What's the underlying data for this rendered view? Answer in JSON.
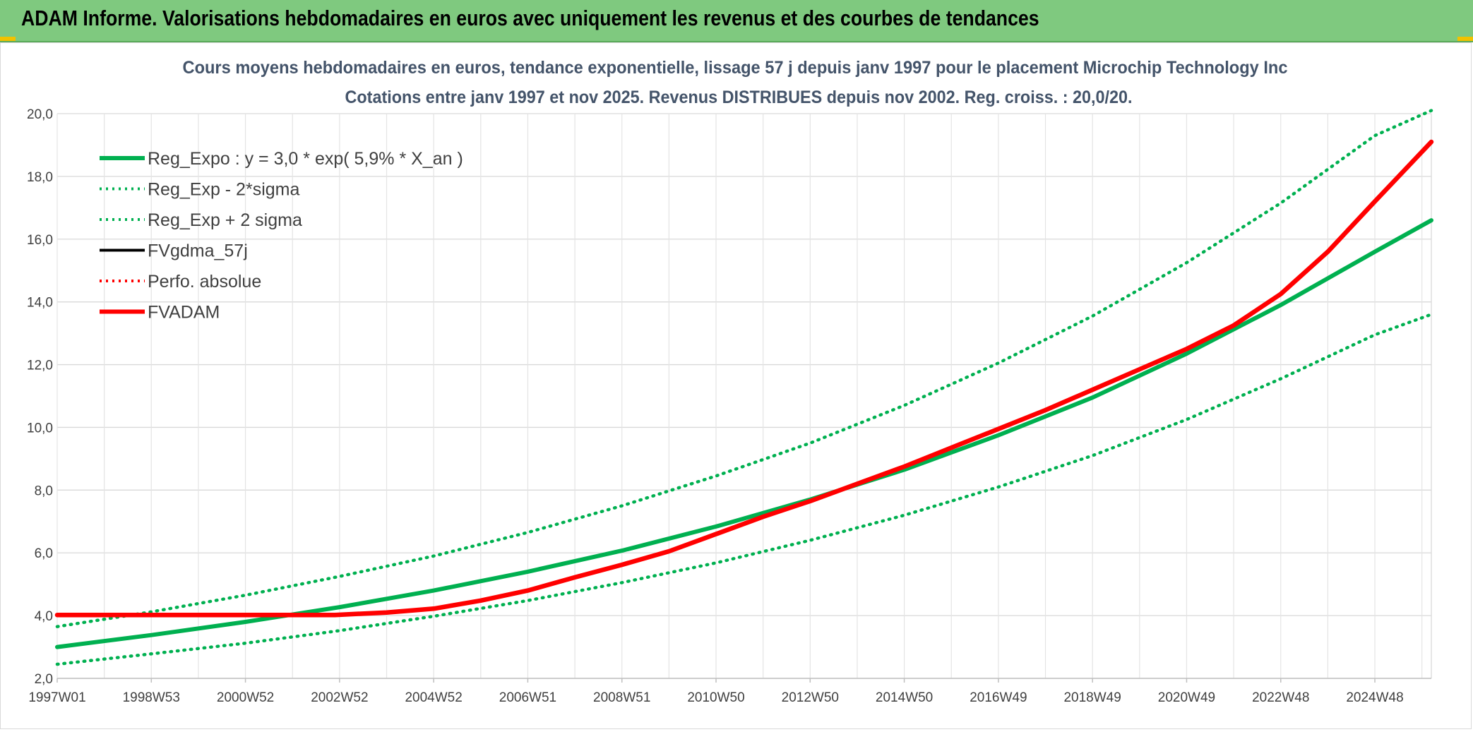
{
  "banner": {
    "title": "ADAM Informe. Valorisations hebdomadaires en euros avec uniquement les revenus et des courbes de tendances"
  },
  "chart_data": {
    "type": "line",
    "title_lines": [
      "Cours moyens hebdomadaires en euros, tendance exponentielle, lissage 57 j depuis janv 1997 pour le placement Microchip Technology Inc",
      "Cotations entre janv 1997 et nov 2025. Revenus DISTRIBUES depuis nov 2002. Reg. croiss. : 20,0/20."
    ],
    "xlabel": "",
    "ylabel": "",
    "ylim": [
      2.0,
      20.0
    ],
    "y_ticks": [
      "2,0",
      "4,0",
      "6,0",
      "8,0",
      "10,0",
      "12,0",
      "14,0",
      "16,0",
      "18,0",
      "20,0"
    ],
    "x_ticks": [
      "1997W01",
      "1998W53",
      "2000W52",
      "2002W52",
      "2004W52",
      "2006W51",
      "2008W51",
      "2010W50",
      "2012W50",
      "2014W50",
      "2016W49",
      "2018W49",
      "2020W49",
      "2022W48",
      "2024W48"
    ],
    "x_tick_years": [
      1997.0,
      1999.0,
      2001.0,
      2003.0,
      2005.0,
      2007.0,
      2009.0,
      2011.0,
      2013.0,
      2015.0,
      2017.0,
      2019.0,
      2021.0,
      2023.0,
      2025.0
    ],
    "x_range_years": [
      1997.0,
      2026.2
    ],
    "grid": true,
    "legend_position": "top-left",
    "legend": [
      {
        "label": "Reg_Expo : y = 3,0 * exp( 5,9% *  X_an )",
        "color": "#00b050",
        "style": "solid",
        "width": 6
      },
      {
        "label": "Reg_Exp - 2*sigma",
        "color": "#00b050",
        "style": "dotted",
        "width": 4
      },
      {
        "label": "Reg_Exp + 2 sigma",
        "color": "#00b050",
        "style": "dotted",
        "width": 4
      },
      {
        "label": "FVgdma_57j",
        "color": "#000000",
        "style": "solid",
        "width": 4
      },
      {
        "label": "Perfo. absolue",
        "color": "#ff0000",
        "style": "dotted",
        "width": 4
      },
      {
        "label": "FVADAM",
        "color": "#ff0000",
        "style": "solid",
        "width": 6
      }
    ],
    "series": [
      {
        "name": "Reg_Expo : y = 3,0 * exp( 5,9% *  X_an )",
        "color": "#00b050",
        "style": "solid",
        "x": [
          1997.0,
          1999.0,
          2001.0,
          2003.0,
          2005.0,
          2007.0,
          2009.0,
          2011.0,
          2013.0,
          2015.0,
          2017.0,
          2019.0,
          2021.0,
          2023.0,
          2025.0,
          2026.2
        ],
        "values": [
          3.0,
          3.38,
          3.8,
          4.27,
          4.8,
          5.4,
          6.07,
          6.84,
          7.7,
          8.65,
          9.75,
          10.95,
          12.35,
          13.9,
          15.6,
          16.6
        ]
      },
      {
        "name": "Reg_Exp - 2*sigma",
        "color": "#00b050",
        "style": "dotted",
        "x": [
          1997.0,
          1999.0,
          2001.0,
          2003.0,
          2005.0,
          2007.0,
          2009.0,
          2011.0,
          2013.0,
          2015.0,
          2017.0,
          2019.0,
          2021.0,
          2023.0,
          2025.0,
          2026.2
        ],
        "values": [
          2.45,
          2.78,
          3.12,
          3.52,
          3.98,
          4.48,
          5.05,
          5.68,
          6.4,
          7.2,
          8.1,
          9.1,
          10.25,
          11.55,
          12.95,
          13.6
        ]
      },
      {
        "name": "Reg_Exp + 2 sigma",
        "color": "#00b050",
        "style": "dotted",
        "x": [
          1997.0,
          1999.0,
          2001.0,
          2003.0,
          2005.0,
          2007.0,
          2009.0,
          2011.0,
          2013.0,
          2015.0,
          2017.0,
          2019.0,
          2021.0,
          2023.0,
          2025.0,
          2026.2
        ],
        "values": [
          3.65,
          4.12,
          4.65,
          5.25,
          5.9,
          6.65,
          7.5,
          8.45,
          9.5,
          10.7,
          12.05,
          13.55,
          15.25,
          17.15,
          19.3,
          20.1
        ]
      },
      {
        "name": "FVADAM",
        "color": "#ff0000",
        "style": "solid",
        "x": [
          1997.0,
          1999.0,
          2001.0,
          2002.9,
          2004.0,
          2005.0,
          2006.0,
          2007.0,
          2008.0,
          2009.0,
          2010.0,
          2011.0,
          2012.0,
          2013.0,
          2014.0,
          2015.0,
          2016.0,
          2017.0,
          2018.0,
          2019.0,
          2020.0,
          2021.0,
          2022.0,
          2023.0,
          2024.0,
          2025.0,
          2026.2
        ],
        "values": [
          4.02,
          4.02,
          4.02,
          4.02,
          4.1,
          4.22,
          4.48,
          4.8,
          5.22,
          5.62,
          6.05,
          6.6,
          7.15,
          7.65,
          8.2,
          8.75,
          9.35,
          9.95,
          10.55,
          11.2,
          11.85,
          12.5,
          13.25,
          14.25,
          15.6,
          17.2,
          19.1
        ]
      }
    ]
  }
}
